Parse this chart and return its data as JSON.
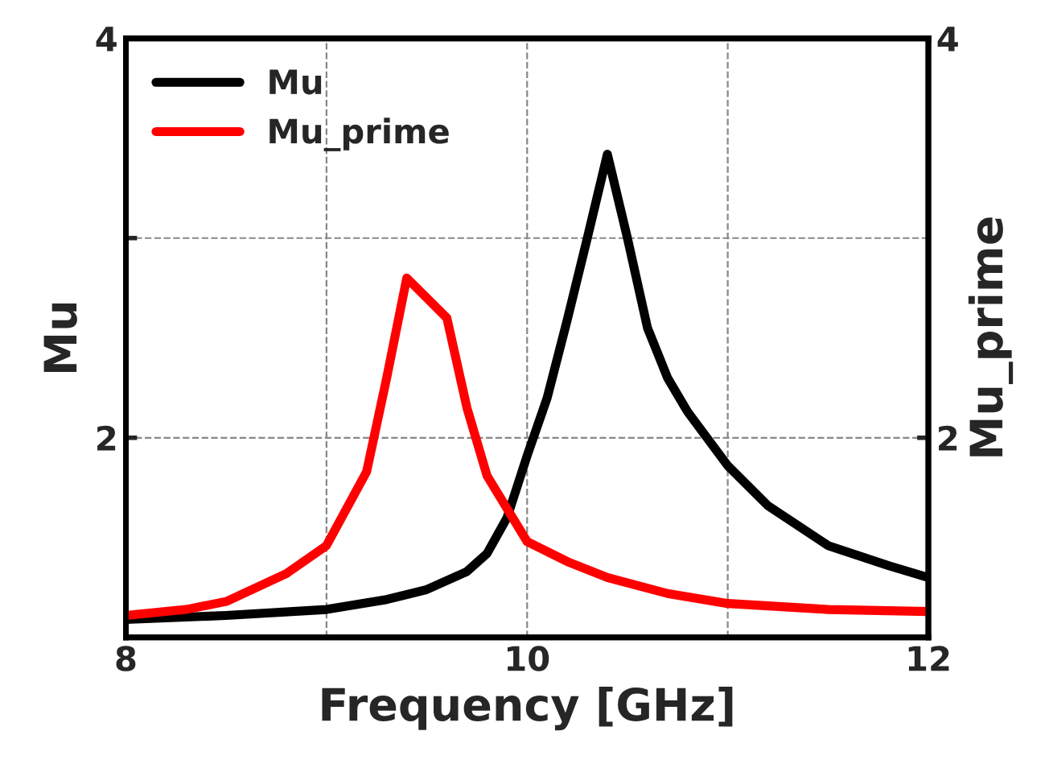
{
  "chart_data": {
    "type": "line",
    "xlabel": "Frequency [GHz]",
    "ylabel": "Mu",
    "y2label": "Mu_prime",
    "xlim": [
      8,
      12
    ],
    "xticks": [
      8,
      {
        "value": 9,
        "label": null
      },
      10,
      {
        "value": 11,
        "label": null
      },
      12
    ],
    "ylim": [
      1,
      4
    ],
    "yticks": [
      2,
      {
        "value": 3,
        "label": null
      },
      4
    ],
    "y2lim": [
      1,
      4
    ],
    "y2ticks": [
      2,
      4
    ],
    "grid": true,
    "legend": "top left",
    "marker": "none",
    "line_style": "solid",
    "series": [
      {
        "name": "Mu",
        "color": "#000000",
        "x": [
          8,
          8.5,
          9,
          9.3,
          9.5,
          9.7,
          9.8,
          9.9,
          10,
          10.1,
          10.2,
          10.3,
          10.4,
          10.5,
          10.6,
          10.7,
          10.8,
          11,
          11.2,
          11.5,
          11.8,
          12
        ],
        "values": [
          1.09,
          1.11,
          1.14,
          1.19,
          1.24,
          1.33,
          1.42,
          1.6,
          1.91,
          2.2,
          2.59,
          3.0,
          3.42,
          3.0,
          2.55,
          2.3,
          2.13,
          1.86,
          1.66,
          1.46,
          1.36,
          1.3
        ]
      },
      {
        "name": "Mu_prime",
        "color": "#ff0000",
        "axis": "y2",
        "x": [
          8,
          8.3,
          8.5,
          8.8,
          9,
          9.2,
          9.3,
          9.4,
          9.5,
          9.6,
          9.7,
          9.8,
          10,
          10.2,
          10.4,
          10.7,
          11,
          11.5,
          12
        ],
        "values": [
          1.11,
          1.14,
          1.18,
          1.32,
          1.46,
          1.83,
          2.3,
          2.8,
          2.7,
          2.6,
          2.15,
          1.81,
          1.48,
          1.38,
          1.3,
          1.22,
          1.17,
          1.14,
          1.13
        ]
      }
    ]
  }
}
